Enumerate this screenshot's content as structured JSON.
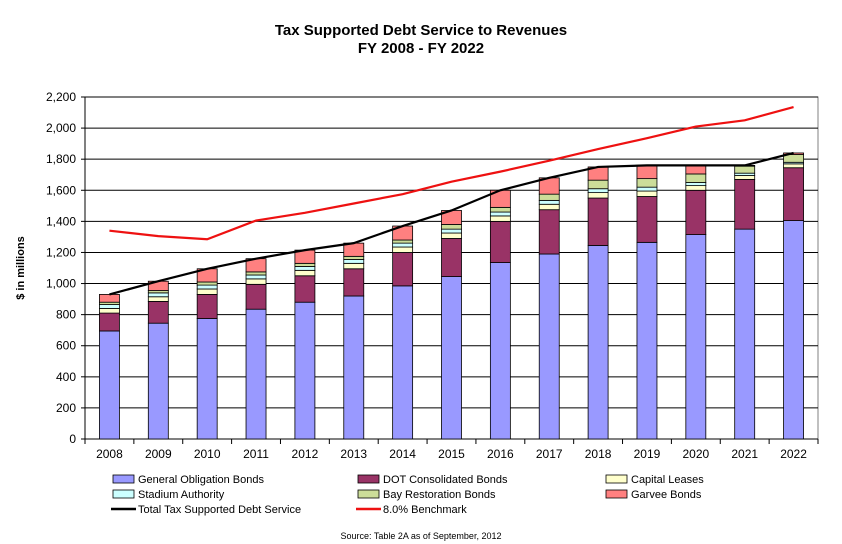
{
  "chart_data": {
    "type": "bar",
    "title": "Tax Supported Debt Service to Revenues",
    "subtitle": "FY 2008 - FY 2022",
    "ylabel": "$ in millions",
    "xlabel": "",
    "ylim": [
      0,
      2200
    ],
    "yticks": [
      0,
      200,
      400,
      600,
      800,
      1000,
      1200,
      1400,
      1600,
      1800,
      2000,
      2200
    ],
    "ytick_labels": [
      "0",
      "200",
      "400",
      "600",
      "800",
      "1,000",
      "1,200",
      "1,400",
      "1,600",
      "1,800",
      "2,000",
      "2,200"
    ],
    "categories": [
      "2008",
      "2009",
      "2010",
      "2011",
      "2012",
      "2013",
      "2014",
      "2015",
      "2016",
      "2017",
      "2018",
      "2019",
      "2020",
      "2021",
      "2022"
    ],
    "stacked": true,
    "grid": true,
    "legend_position": "bottom",
    "series": [
      {
        "name": "General Obligation Bonds",
        "color": "#9999ff",
        "values": [
          695,
          745,
          775,
          835,
          880,
          920,
          985,
          1045,
          1135,
          1190,
          1245,
          1265,
          1315,
          1350,
          1405
        ]
      },
      {
        "name": "DOT Consolidated Bonds",
        "color": "#993366",
        "values": [
          115,
          140,
          155,
          160,
          170,
          175,
          215,
          245,
          265,
          285,
          305,
          295,
          285,
          320,
          340
        ]
      },
      {
        "name": "Capital  Leases",
        "color": "#ffffcc",
        "values": [
          30,
          30,
          35,
          35,
          35,
          35,
          35,
          35,
          35,
          35,
          35,
          35,
          30,
          25,
          25
        ]
      },
      {
        "name": "Stadium Authority",
        "color": "#ccffff",
        "values": [
          25,
          25,
          25,
          25,
          25,
          25,
          25,
          25,
          25,
          25,
          25,
          25,
          20,
          15,
          10
        ]
      },
      {
        "name": "Bay Restoration Bonds",
        "color": "#ccdd99",
        "values": [
          15,
          15,
          20,
          20,
          20,
          20,
          20,
          30,
          30,
          40,
          55,
          55,
          55,
          45,
          50
        ]
      },
      {
        "name": "Garvee Bonds",
        "color": "#ff8080",
        "values": [
          50,
          60,
          85,
          85,
          85,
          85,
          90,
          90,
          110,
          105,
          85,
          85,
          55,
          5,
          10
        ]
      }
    ],
    "lines": [
      {
        "name": "Total Tax Supported Debt Service",
        "color": "#000000",
        "values": [
          930,
          1015,
          1095,
          1160,
          1215,
          1260,
          1370,
          1470,
          1600,
          1680,
          1750,
          1760,
          1760,
          1760,
          1840
        ]
      },
      {
        "name": "8.0% Benchmark",
        "color": "#ee1111",
        "values": [
          1340,
          1305,
          1285,
          1405,
          1455,
          1515,
          1575,
          1655,
          1720,
          1790,
          1865,
          1935,
          2010,
          2050,
          2135
        ]
      }
    ]
  },
  "footer": {
    "source": "Source: Table 2A as of  September, 2012"
  }
}
